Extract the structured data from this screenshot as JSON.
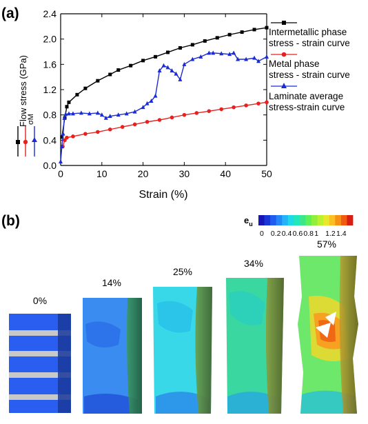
{
  "panel_a_label": "(a)",
  "panel_b_label": "(b)",
  "chart_data": {
    "type": "line",
    "xlabel": "Strain (%)",
    "ylabel": "Flow stress (GPa)",
    "xlim": [
      0,
      50
    ],
    "ylim": [
      0,
      2.4
    ],
    "xticks": [
      "0",
      "10",
      "20",
      "30",
      "40",
      "50"
    ],
    "yticks": [
      "0.0",
      "0.4",
      "0.8",
      "1.2",
      "1.6",
      "2.0",
      "2.4"
    ],
    "grid": false,
    "legend_position": "right",
    "side_legend_label": "σM",
    "series": [
      {
        "name": "Intermetallic phase stress - strain curve",
        "color": "#000000",
        "marker": "square",
        "x": [
          0.3,
          1,
          1.5,
          2,
          4,
          6,
          9,
          12,
          14,
          17,
          20,
          23,
          26,
          29,
          32,
          35,
          38,
          41,
          44,
          47,
          50
        ],
        "y": [
          0.45,
          0.75,
          0.93,
          1.0,
          1.12,
          1.22,
          1.34,
          1.44,
          1.51,
          1.58,
          1.66,
          1.72,
          1.79,
          1.86,
          1.91,
          1.97,
          2.02,
          2.07,
          2.11,
          2.15,
          2.18
        ]
      },
      {
        "name": "Metal phase stress - strain curve",
        "color": "#e8201e",
        "marker": "circle",
        "x": [
          0.5,
          1,
          1.5,
          3,
          6,
          9,
          12,
          15,
          18,
          21,
          24,
          27,
          30,
          33,
          36,
          39,
          42,
          45,
          48,
          50
        ],
        "y": [
          0.3,
          0.4,
          0.44,
          0.46,
          0.5,
          0.53,
          0.57,
          0.61,
          0.65,
          0.69,
          0.72,
          0.76,
          0.8,
          0.83,
          0.86,
          0.89,
          0.92,
          0.95,
          0.98,
          1.0
        ]
      },
      {
        "name": "Laminate average stress-strain curve",
        "color": "#1a2bd6",
        "marker": "triangle",
        "x": [
          0,
          0.3,
          0.6,
          0.9,
          1.2,
          2,
          3,
          5,
          7,
          9,
          10,
          11,
          12,
          14,
          16,
          18,
          20,
          21,
          22,
          23,
          24,
          25,
          26,
          27,
          28,
          29,
          30,
          32,
          34,
          36,
          37,
          39,
          41,
          42,
          43,
          45,
          47,
          48,
          50
        ],
        "y": [
          0.06,
          0.3,
          0.5,
          0.75,
          0.81,
          0.82,
          0.82,
          0.83,
          0.82,
          0.83,
          0.8,
          0.75,
          0.78,
          0.8,
          0.82,
          0.85,
          0.92,
          0.98,
          1.02,
          1.1,
          1.5,
          1.58,
          1.55,
          1.5,
          1.45,
          1.36,
          1.6,
          1.68,
          1.72,
          1.78,
          1.78,
          1.77,
          1.76,
          1.78,
          1.68,
          1.68,
          1.7,
          1.65,
          1.72
        ]
      }
    ]
  },
  "colorbar": {
    "title": "e",
    "subscript": "u",
    "tick_labels": [
      "0",
      "0.2",
      "0.4",
      "0.6",
      "0.8",
      "1",
      "1.2",
      "1.4"
    ],
    "colors": [
      "#1515b8",
      "#1a35d8",
      "#1f5cf0",
      "#2288f5",
      "#22b4f5",
      "#1fd8e8",
      "#22e8b8",
      "#3ae888",
      "#5ef05a",
      "#8ef03a",
      "#bef030",
      "#e8e82a",
      "#f8c020",
      "#f89018",
      "#f05a12",
      "#d81e0e"
    ]
  },
  "samples": [
    {
      "label": "0%",
      "base": "#2a5ef0"
    },
    {
      "label": "14%",
      "base": "#3a8cf0"
    },
    {
      "label": "25%",
      "base": "#38d8e8"
    },
    {
      "label": "34%",
      "base": "#3ad8a0"
    },
    {
      "label": "57%",
      "base": "#6ee86a"
    }
  ]
}
